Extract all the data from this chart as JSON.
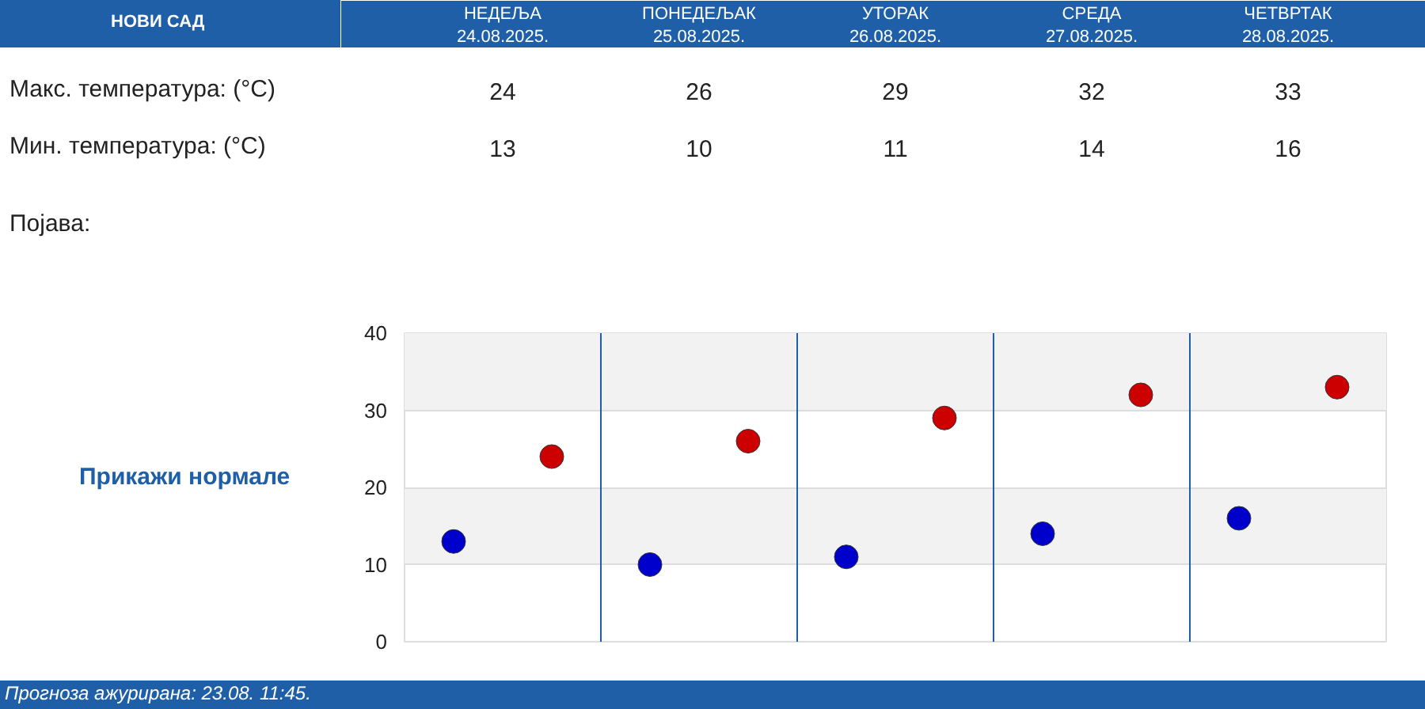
{
  "chart_data": [
    {
      "type": "other",
      "title": "НОВИ САД",
      "categories": [
        "НЕДЕЉА\n24.08.2025.",
        "ПОНЕДЕЉАК\n25.08.2025.",
        "УТОРАК\n26.08.2025.",
        "СРЕДА\n27.08.2025.",
        "ЧЕТВРТАК\n28.08.2025."
      ],
      "series": [
        {
          "name": "Макс. температура: (°C)",
          "values": [
            24,
            26,
            29,
            32,
            33
          ]
        },
        {
          "name": "Мин. температура: (°C)",
          "values": [
            13,
            10,
            11,
            14,
            16
          ]
        }
      ],
      "data_labels": true,
      "annotations": [
        "Појава:"
      ]
    },
    {
      "type": "scatter",
      "categories": [
        null,
        null,
        null,
        null,
        null
      ],
      "series": [
        {
          "color": "#cc0000",
          "values": [
            24,
            26,
            29,
            32,
            33
          ]
        },
        {
          "color": "#0000cc",
          "values": [
            13,
            10,
            11,
            14,
            16
          ]
        }
      ],
      "ylim": [
        0,
        40
      ],
      "yticks": [
        0,
        10,
        20,
        30,
        40
      ],
      "grid": "y",
      "marker": "circle",
      "tick_labels": "y",
      "annotations": [
        "Прикажи нормале",
        "Прогноза ажурирана:  23.08. 11:45."
      ]
    }
  ]
}
